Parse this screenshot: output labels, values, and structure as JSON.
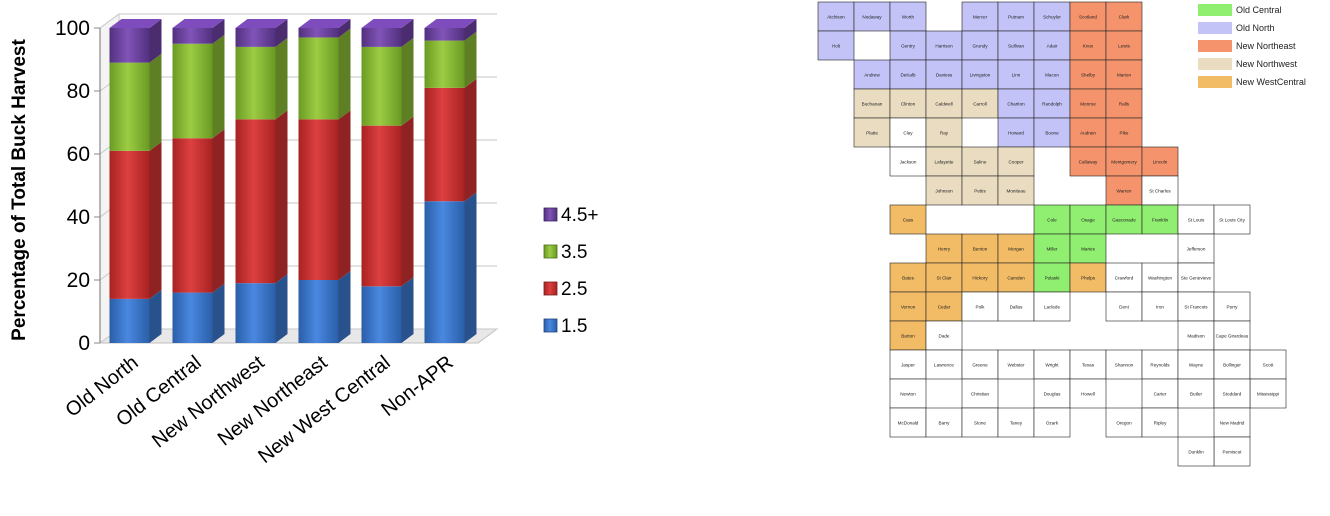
{
  "chart_data": {
    "type": "bar",
    "stacked": true,
    "categories": [
      "Old North",
      "Old Central",
      "New Northwest",
      "New Northeast",
      "New West Central",
      "Non-APR"
    ],
    "series": [
      {
        "name": "1.5",
        "color": "#3a73c8",
        "values": [
          14,
          16,
          19,
          20,
          18,
          45
        ]
      },
      {
        "name": "2.5",
        "color": "#cc3030",
        "values": [
          47,
          49,
          52,
          51,
          51,
          36
        ]
      },
      {
        "name": "3.5",
        "color": "#86b633",
        "values": [
          28,
          30,
          23,
          26,
          25,
          15
        ]
      },
      {
        "name": "4.5+",
        "color": "#6a3f9e",
        "values": [
          11,
          5,
          6,
          3,
          6,
          4
        ]
      }
    ],
    "legend_order": [
      "4.5+",
      "3.5",
      "2.5",
      "1.5"
    ],
    "ylabel": "Percentage of Total Buck Harvest",
    "xlabel": "",
    "ylim": [
      0,
      100
    ],
    "yticks": [
      0,
      20,
      40,
      60,
      80,
      100
    ],
    "grid": true,
    "legend_position": "right"
  },
  "map": {
    "legend": [
      {
        "label": "Old Central",
        "color": "#90ee70"
      },
      {
        "label": "Old North",
        "color": "#c3c3f7"
      },
      {
        "label": "New Northeast",
        "color": "#f5946c"
      },
      {
        "label": "New Northwest",
        "color": "#e9dcc1"
      },
      {
        "label": "New WestCentral",
        "color": "#f2bb66"
      }
    ],
    "counties": [
      {
        "name": "Atchison",
        "region": "Old North"
      },
      {
        "name": "Nodaway",
        "region": "Old North"
      },
      {
        "name": "Worth",
        "region": "Old North"
      },
      {
        "name": "Mercer",
        "region": "Old North"
      },
      {
        "name": "Putnam",
        "region": "Old North"
      },
      {
        "name": "Schuyler",
        "region": "Old North"
      },
      {
        "name": "Scotland",
        "region": "New Northeast"
      },
      {
        "name": "Clark",
        "region": "New Northeast"
      },
      {
        "name": "Holt",
        "region": "Old North"
      },
      {
        "name": "Gentry",
        "region": "Old North"
      },
      {
        "name": "Harrison",
        "region": "Old North"
      },
      {
        "name": "Grundy",
        "region": "Old North"
      },
      {
        "name": "Sullivan",
        "region": "Old North"
      },
      {
        "name": "Adair",
        "region": "Old North"
      },
      {
        "name": "Knox",
        "region": "New Northeast"
      },
      {
        "name": "Lewis",
        "region": "New Northeast"
      },
      {
        "name": "Andrew",
        "region": "Old North"
      },
      {
        "name": "DeKalb",
        "region": "Old North"
      },
      {
        "name": "Daviess",
        "region": "Old North"
      },
      {
        "name": "Livingston",
        "region": "Old North"
      },
      {
        "name": "Linn",
        "region": "Old North"
      },
      {
        "name": "Macon",
        "region": "Old North"
      },
      {
        "name": "Shelby",
        "region": "New Northeast"
      },
      {
        "name": "Marion",
        "region": "New Northeast"
      },
      {
        "name": "Buchanan",
        "region": "New Northwest"
      },
      {
        "name": "Clinton",
        "region": "New Northwest"
      },
      {
        "name": "Caldwell",
        "region": "New Northwest"
      },
      {
        "name": "Carroll",
        "region": "New Northwest"
      },
      {
        "name": "Chariton",
        "region": "Old North"
      },
      {
        "name": "Randolph",
        "region": "Old North"
      },
      {
        "name": "Monroe",
        "region": "New Northeast"
      },
      {
        "name": "Ralls",
        "region": "New Northeast"
      },
      {
        "name": "Platte",
        "region": "New Northwest"
      },
      {
        "name": "Clay",
        "region": "none"
      },
      {
        "name": "Ray",
        "region": "New Northwest"
      },
      {
        "name": "Howard",
        "region": "Old North"
      },
      {
        "name": "Boone",
        "region": "Old North"
      },
      {
        "name": "Audrain",
        "region": "New Northeast"
      },
      {
        "name": "Pike",
        "region": "New Northeast"
      },
      {
        "name": "Jackson",
        "region": "none"
      },
      {
        "name": "Lafayette",
        "region": "New Northwest"
      },
      {
        "name": "Saline",
        "region": "New Northwest"
      },
      {
        "name": "Cooper",
        "region": "New Northwest"
      },
      {
        "name": "Callaway",
        "region": "New Northeast"
      },
      {
        "name": "Montgomery",
        "region": "New Northeast"
      },
      {
        "name": "Lincoln",
        "region": "New Northeast"
      },
      {
        "name": "Johnson",
        "region": "New Northwest"
      },
      {
        "name": "Pettis",
        "region": "New Northwest"
      },
      {
        "name": "Moniteau",
        "region": "New Northwest"
      },
      {
        "name": "Warren",
        "region": "New Northeast"
      },
      {
        "name": "St Charles",
        "region": "none"
      },
      {
        "name": "Cass",
        "region": "New WestCentral"
      },
      {
        "name": "Cole",
        "region": "Old Central"
      },
      {
        "name": "Osage",
        "region": "Old Central"
      },
      {
        "name": "Gasconade",
        "region": "Old Central"
      },
      {
        "name": "Franklin",
        "region": "Old Central"
      },
      {
        "name": "St Louis",
        "region": "none"
      },
      {
        "name": "St Louis City",
        "region": "none"
      },
      {
        "name": "Henry",
        "region": "New WestCentral"
      },
      {
        "name": "Benton",
        "region": "New WestCentral"
      },
      {
        "name": "Morgan",
        "region": "New WestCentral"
      },
      {
        "name": "Miller",
        "region": "Old Central"
      },
      {
        "name": "Maries",
        "region": "Old Central"
      },
      {
        "name": "Jefferson",
        "region": "none"
      },
      {
        "name": "Bates",
        "region": "New WestCentral"
      },
      {
        "name": "St Clair",
        "region": "New WestCentral"
      },
      {
        "name": "Hickory",
        "region": "New WestCentral"
      },
      {
        "name": "Camden",
        "region": "New WestCentral"
      },
      {
        "name": "Pulaski",
        "region": "Old Central"
      },
      {
        "name": "Phelps",
        "region": "New WestCentral"
      },
      {
        "name": "Crawford",
        "region": "none"
      },
      {
        "name": "Washington",
        "region": "none"
      },
      {
        "name": "Ste Genevieve",
        "region": "none"
      },
      {
        "name": "Vernon",
        "region": "New WestCentral"
      },
      {
        "name": "Cedar",
        "region": "New WestCentral"
      },
      {
        "name": "Polk",
        "region": "none"
      },
      {
        "name": "Dallas",
        "region": "none"
      },
      {
        "name": "Laclede",
        "region": "none"
      },
      {
        "name": "Dent",
        "region": "none"
      },
      {
        "name": "Iron",
        "region": "none"
      },
      {
        "name": "St Francois",
        "region": "none"
      },
      {
        "name": "Perry",
        "region": "none"
      },
      {
        "name": "Barton",
        "region": "New WestCentral"
      },
      {
        "name": "Dade",
        "region": "none"
      },
      {
        "name": "Madison",
        "region": "none"
      },
      {
        "name": "Cape Girardeau",
        "region": "none"
      },
      {
        "name": "Jasper",
        "region": "none"
      },
      {
        "name": "Lawrence",
        "region": "none"
      },
      {
        "name": "Greene",
        "region": "none"
      },
      {
        "name": "Webster",
        "region": "none"
      },
      {
        "name": "Wright",
        "region": "none"
      },
      {
        "name": "Texas",
        "region": "none"
      },
      {
        "name": "Shannon",
        "region": "none"
      },
      {
        "name": "Reynolds",
        "region": "none"
      },
      {
        "name": "Wayne",
        "region": "none"
      },
      {
        "name": "Bollinger",
        "region": "none"
      },
      {
        "name": "Scott",
        "region": "none"
      },
      {
        "name": "Mississippi",
        "region": "none"
      },
      {
        "name": "Newton",
        "region": "none"
      },
      {
        "name": "Christian",
        "region": "none"
      },
      {
        "name": "Douglas",
        "region": "none"
      },
      {
        "name": "Howell",
        "region": "none"
      },
      {
        "name": "Carter",
        "region": "none"
      },
      {
        "name": "Butler",
        "region": "none"
      },
      {
        "name": "Stoddard",
        "region": "none"
      },
      {
        "name": "McDonald",
        "region": "none"
      },
      {
        "name": "Barry",
        "region": "none"
      },
      {
        "name": "Stone",
        "region": "none"
      },
      {
        "name": "Taney",
        "region": "none"
      },
      {
        "name": "Ozark",
        "region": "none"
      },
      {
        "name": "Oregon",
        "region": "none"
      },
      {
        "name": "Ripley",
        "region": "none"
      },
      {
        "name": "New Madrid",
        "region": "none"
      },
      {
        "name": "Pemiscot",
        "region": "none"
      },
      {
        "name": "Dunklin",
        "region": "none"
      }
    ]
  }
}
